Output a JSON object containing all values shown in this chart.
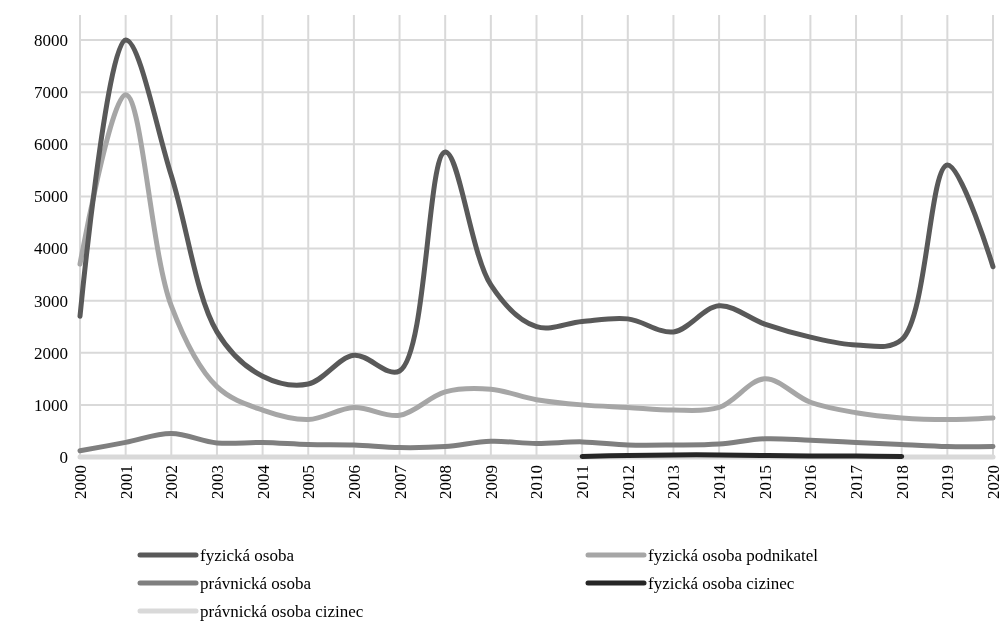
{
  "chart_data": {
    "type": "line",
    "x": [
      2000,
      2001,
      2002,
      2003,
      2004,
      2005,
      2006,
      2007,
      2008,
      2009,
      2010,
      2011,
      2012,
      2013,
      2014,
      2015,
      2016,
      2017,
      2018,
      2019,
      2020
    ],
    "xlim": [
      2000,
      2020
    ],
    "xticks": [
      2000,
      2001,
      2002,
      2003,
      2004,
      2005,
      2006,
      2007,
      2008,
      2009,
      2010,
      2011,
      2012,
      2013,
      2014,
      2015,
      2016,
      2017,
      2018,
      2019,
      2020
    ],
    "ylim": [
      0,
      8000
    ],
    "yticks": [
      0,
      1000,
      2000,
      3000,
      4000,
      5000,
      6000,
      7000,
      8000
    ],
    "grid": true,
    "legend": "bottom",
    "line_style": "solid",
    "marker": "none",
    "series": [
      {
        "name": "fyzická osoba",
        "color": "#595959",
        "values": [
          2700,
          8000,
          5400,
          2400,
          1550,
          1400,
          1950,
          1650,
          5850,
          3300,
          2500,
          2600,
          2650,
          2400,
          2900,
          2550,
          2300,
          2150,
          2250,
          5600,
          3650
        ]
      },
      {
        "name": "fyzická osoba podnikatel",
        "color": "#a6a6a6",
        "values": [
          3700,
          6950,
          2900,
          1350,
          900,
          720,
          950,
          800,
          1250,
          1300,
          1100,
          1000,
          950,
          900,
          950,
          1500,
          1050,
          850,
          750,
          720,
          750
        ]
      },
      {
        "name": "právnická osoba",
        "color": "#7f7f7f",
        "values": [
          120,
          280,
          450,
          270,
          280,
          240,
          230,
          180,
          200,
          300,
          260,
          290,
          230,
          230,
          250,
          350,
          320,
          280,
          240,
          200,
          200
        ]
      },
      {
        "name": "fyzická osoba cizinec",
        "color": "#262626",
        "values": [
          null,
          null,
          null,
          null,
          null,
          null,
          null,
          null,
          null,
          null,
          null,
          10,
          30,
          40,
          40,
          30,
          20,
          20,
          10,
          null,
          null
        ]
      },
      {
        "name": "právnická osoba cizinec",
        "color": "#d9d9d9",
        "values": [
          0,
          0,
          0,
          0,
          0,
          0,
          0,
          0,
          0,
          0,
          0,
          0,
          0,
          0,
          0,
          0,
          0,
          0,
          0,
          0,
          0
        ]
      }
    ]
  }
}
